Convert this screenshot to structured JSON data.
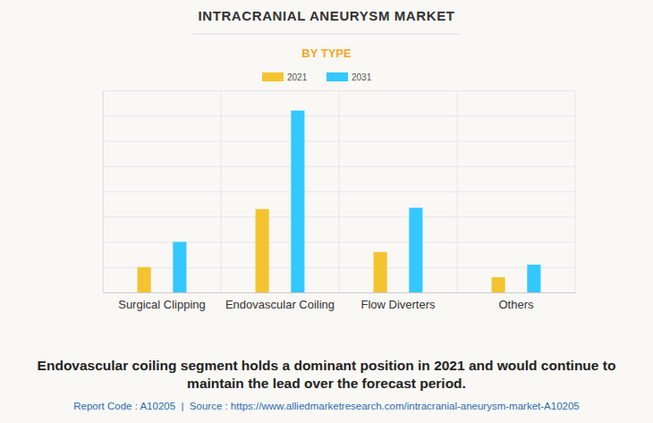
{
  "chart_data": {
    "type": "bar",
    "title": "INTRACRANIAL ANEURYSM MARKET",
    "subtitle": "BY TYPE",
    "categories": [
      "Surgical Clipping",
      "Endovascular Coiling",
      "Flow Diverters",
      "Others"
    ],
    "series": [
      {
        "name": "2021",
        "color": "#f4c430",
        "values": [
          1.0,
          3.3,
          1.6,
          0.6
        ]
      },
      {
        "name": "2031",
        "color": "#33c8ff",
        "values": [
          2.0,
          7.2,
          3.35,
          1.1
        ]
      }
    ],
    "ylim": [
      0,
      8
    ],
    "yticks": [
      0,
      1,
      2,
      3,
      4,
      5,
      6,
      7,
      8
    ],
    "grid": true,
    "legend": "top",
    "tick_labels": "x",
    "caption": [
      "Endovascular coiling segment holds a dominant position in 2021 and would continue to",
      "maintain the lead over the forecast period."
    ],
    "source": "Report Code : A10205  |  Source : https://www.alliedmarketresearch.com/intracranial-aneurysm-market-A10205"
  }
}
